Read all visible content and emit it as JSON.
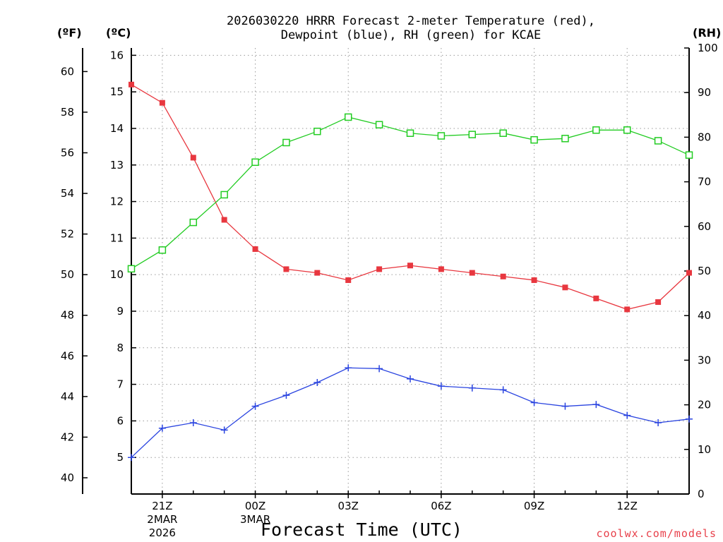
{
  "chart_data": {
    "type": "line",
    "title": [
      "2026030220 HRRR Forecast 2-meter Temperature (red),",
      "Dewpoint (blue), RH (green) for KCAE"
    ],
    "xlabel": "Forecast Time (UTC)",
    "units": {
      "fahrenheit": "(ºF)",
      "celsius": "(ºC)",
      "rh": "(RH)"
    },
    "credit": "coolwx.com/models",
    "x_hours_since_20Z": [
      0,
      1,
      2,
      3,
      4,
      5,
      6,
      7,
      8,
      9,
      10,
      11,
      12,
      13,
      14,
      15,
      16,
      17,
      18
    ],
    "x_range": [
      0,
      18
    ],
    "y_celsius": {
      "range": [
        4.0,
        16.2
      ],
      "ticks": [
        5,
        6,
        7,
        8,
        9,
        10,
        11,
        12,
        13,
        14,
        15,
        16
      ]
    },
    "y_fahrenheit": {
      "ticks": [
        40,
        42,
        44,
        46,
        48,
        50,
        52,
        54,
        56,
        58,
        60
      ]
    },
    "y_rh": {
      "range": [
        0,
        100
      ],
      "ticks": [
        0,
        10,
        20,
        30,
        40,
        50,
        60,
        70,
        80,
        90,
        100
      ]
    },
    "x_ticks": [
      {
        "hour": 1,
        "lines": [
          "21Z",
          "2MAR",
          "2026"
        ]
      },
      {
        "hour": 4,
        "lines": [
          "00Z",
          "3MAR"
        ]
      },
      {
        "hour": 7,
        "lines": [
          "03Z"
        ]
      },
      {
        "hour": 10,
        "lines": [
          "06Z"
        ]
      },
      {
        "hour": 13,
        "lines": [
          "09Z"
        ]
      },
      {
        "hour": 16,
        "lines": [
          "12Z"
        ]
      }
    ],
    "series": [
      {
        "name": "Temperature (°C)",
        "color": "#e8373f",
        "marker": "filled-square",
        "axis": "celsius",
        "values": [
          15.2,
          14.7,
          13.2,
          11.5,
          10.7,
          10.15,
          10.05,
          9.85,
          10.15,
          10.25,
          10.15,
          10.05,
          9.95,
          9.85,
          9.65,
          9.35,
          9.05,
          9.25,
          10.05
        ]
      },
      {
        "name": "Dewpoint (°C)",
        "color": "#2a44e0",
        "marker": "plus",
        "axis": "celsius",
        "values": [
          5.0,
          5.8,
          5.95,
          5.75,
          6.4,
          6.7,
          7.05,
          7.45,
          7.43,
          7.15,
          6.95,
          6.9,
          6.85,
          6.5,
          6.4,
          6.45,
          6.15,
          5.95,
          6.05
        ]
      },
      {
        "name": "RH (%)",
        "color": "#22cc22",
        "marker": "open-square",
        "axis": "rh",
        "values": [
          50.5,
          54.7,
          60.9,
          67.1,
          74.4,
          78.8,
          81.3,
          84.5,
          82.8,
          80.9,
          80.3,
          80.6,
          80.9,
          79.4,
          79.7,
          81.6,
          81.6,
          79.2,
          76.0
        ]
      }
    ]
  }
}
